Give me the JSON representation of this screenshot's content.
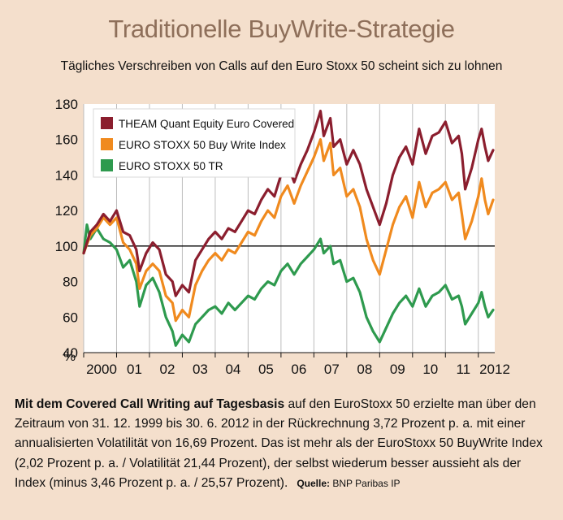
{
  "title": "Traditionelle BuyWrite-Strategie",
  "subtitle": "Tägliches Verschreiben von Calls auf den Euro Stoxx 50 scheint sich zu lohnen",
  "caption": {
    "bold": "Mit dem Covered Call Writing auf Tagesbasis",
    "text": " auf den EuroStoxx 50 erzielte man über den Zeitraum von 31. 12. 1999 bis 30. 6. 2012 in der Rückrechnung 3,72 Prozent p. a. mit einer annualisierten Volatilität von 16,69 Prozent. Das ist mehr als der EuroStoxx 50 BuyWrite Index (2,02 Prozent p. a. / Volatilität 21,44 Prozent), der selbst wiederum besser aussieht als der Index (minus 3,46 Prozent p. a. / 25,57 Prozent).",
    "source_label": "Quelle:",
    "source": "BNP Paribas IP"
  },
  "chart_data": {
    "type": "line",
    "ylabel": "%",
    "ylim": [
      40,
      180
    ],
    "yticks": [
      40,
      60,
      80,
      100,
      120,
      140,
      160,
      180
    ],
    "xlim": [
      2000.0,
      2012.5
    ],
    "xticks": [
      {
        "label": "2000",
        "x": 2000.0
      },
      {
        "label": "01",
        "x": 2001.0
      },
      {
        "label": "02",
        "x": 2002.0
      },
      {
        "label": "03",
        "x": 2003.0
      },
      {
        "label": "04",
        "x": 2004.0
      },
      {
        "label": "05",
        "x": 2005.0
      },
      {
        "label": "06",
        "x": 2006.0
      },
      {
        "label": "07",
        "x": 2007.0
      },
      {
        "label": "08",
        "x": 2008.0
      },
      {
        "label": "09",
        "x": 2009.0
      },
      {
        "label": "10",
        "x": 2010.0
      },
      {
        "label": "11",
        "x": 2011.0
      },
      {
        "label": "2012",
        "x": 2012.0
      }
    ],
    "reference_line": 100,
    "grid": "vertical lines at year ticks",
    "legend_position": "top-left",
    "series": [
      {
        "name": "THEAM Quant Equity Euro Covered",
        "color": "#8b1e2e",
        "points": [
          [
            2000.0,
            96
          ],
          [
            2000.2,
            108
          ],
          [
            2000.4,
            112
          ],
          [
            2000.6,
            118
          ],
          [
            2000.8,
            114
          ],
          [
            2001.0,
            120
          ],
          [
            2001.2,
            108
          ],
          [
            2001.4,
            106
          ],
          [
            2001.6,
            98
          ],
          [
            2001.7,
            86
          ],
          [
            2001.9,
            96
          ],
          [
            2002.1,
            102
          ],
          [
            2002.3,
            98
          ],
          [
            2002.5,
            84
          ],
          [
            2002.7,
            80
          ],
          [
            2002.8,
            72
          ],
          [
            2003.0,
            78
          ],
          [
            2003.2,
            74
          ],
          [
            2003.4,
            92
          ],
          [
            2003.6,
            98
          ],
          [
            2003.8,
            104
          ],
          [
            2004.0,
            108
          ],
          [
            2004.2,
            104
          ],
          [
            2004.4,
            110
          ],
          [
            2004.6,
            108
          ],
          [
            2004.8,
            114
          ],
          [
            2005.0,
            120
          ],
          [
            2005.2,
            118
          ],
          [
            2005.4,
            126
          ],
          [
            2005.6,
            132
          ],
          [
            2005.8,
            128
          ],
          [
            2006.0,
            140
          ],
          [
            2006.2,
            146
          ],
          [
            2006.4,
            136
          ],
          [
            2006.6,
            146
          ],
          [
            2006.8,
            154
          ],
          [
            2007.0,
            164
          ],
          [
            2007.2,
            176
          ],
          [
            2007.3,
            162
          ],
          [
            2007.5,
            172
          ],
          [
            2007.6,
            156
          ],
          [
            2007.8,
            160
          ],
          [
            2008.0,
            146
          ],
          [
            2008.2,
            154
          ],
          [
            2008.4,
            146
          ],
          [
            2008.6,
            132
          ],
          [
            2008.8,
            122
          ],
          [
            2009.0,
            112
          ],
          [
            2009.2,
            124
          ],
          [
            2009.4,
            140
          ],
          [
            2009.6,
            150
          ],
          [
            2009.8,
            156
          ],
          [
            2010.0,
            146
          ],
          [
            2010.2,
            166
          ],
          [
            2010.4,
            152
          ],
          [
            2010.6,
            162
          ],
          [
            2010.8,
            164
          ],
          [
            2011.0,
            170
          ],
          [
            2011.2,
            158
          ],
          [
            2011.4,
            162
          ],
          [
            2011.5,
            152
          ],
          [
            2011.6,
            132
          ],
          [
            2011.8,
            144
          ],
          [
            2012.0,
            160
          ],
          [
            2012.1,
            166
          ],
          [
            2012.2,
            156
          ],
          [
            2012.3,
            148
          ],
          [
            2012.45,
            154
          ]
        ]
      },
      {
        "name": "EURO STOXX 50 Buy Write Index",
        "color": "#f08a1e",
        "points": [
          [
            2000.0,
            96
          ],
          [
            2000.2,
            106
          ],
          [
            2000.4,
            110
          ],
          [
            2000.6,
            116
          ],
          [
            2000.8,
            112
          ],
          [
            2001.0,
            116
          ],
          [
            2001.2,
            102
          ],
          [
            2001.4,
            98
          ],
          [
            2001.6,
            90
          ],
          [
            2001.7,
            76
          ],
          [
            2001.9,
            86
          ],
          [
            2002.1,
            90
          ],
          [
            2002.3,
            86
          ],
          [
            2002.5,
            72
          ],
          [
            2002.7,
            68
          ],
          [
            2002.8,
            58
          ],
          [
            2003.0,
            64
          ],
          [
            2003.2,
            60
          ],
          [
            2003.4,
            78
          ],
          [
            2003.6,
            86
          ],
          [
            2003.8,
            92
          ],
          [
            2004.0,
            96
          ],
          [
            2004.2,
            92
          ],
          [
            2004.4,
            98
          ],
          [
            2004.6,
            96
          ],
          [
            2004.8,
            102
          ],
          [
            2005.0,
            108
          ],
          [
            2005.2,
            106
          ],
          [
            2005.4,
            114
          ],
          [
            2005.6,
            120
          ],
          [
            2005.8,
            116
          ],
          [
            2006.0,
            128
          ],
          [
            2006.2,
            134
          ],
          [
            2006.4,
            124
          ],
          [
            2006.6,
            134
          ],
          [
            2006.8,
            142
          ],
          [
            2007.0,
            150
          ],
          [
            2007.2,
            160
          ],
          [
            2007.3,
            148
          ],
          [
            2007.5,
            158
          ],
          [
            2007.6,
            140
          ],
          [
            2007.8,
            144
          ],
          [
            2008.0,
            128
          ],
          [
            2008.2,
            132
          ],
          [
            2008.4,
            122
          ],
          [
            2008.6,
            104
          ],
          [
            2008.8,
            92
          ],
          [
            2009.0,
            84
          ],
          [
            2009.2,
            98
          ],
          [
            2009.4,
            112
          ],
          [
            2009.6,
            122
          ],
          [
            2009.8,
            128
          ],
          [
            2010.0,
            116
          ],
          [
            2010.2,
            136
          ],
          [
            2010.4,
            122
          ],
          [
            2010.6,
            130
          ],
          [
            2010.8,
            132
          ],
          [
            2011.0,
            136
          ],
          [
            2011.2,
            126
          ],
          [
            2011.4,
            130
          ],
          [
            2011.5,
            118
          ],
          [
            2011.6,
            104
          ],
          [
            2011.8,
            114
          ],
          [
            2012.0,
            128
          ],
          [
            2012.1,
            138
          ],
          [
            2012.2,
            126
          ],
          [
            2012.3,
            118
          ],
          [
            2012.45,
            126
          ]
        ]
      },
      {
        "name": "EURO STOXX 50 TR",
        "color": "#2e9a4e",
        "points": [
          [
            2000.0,
            96
          ],
          [
            2000.1,
            112
          ],
          [
            2000.2,
            104
          ],
          [
            2000.4,
            110
          ],
          [
            2000.6,
            104
          ],
          [
            2000.8,
            102
          ],
          [
            2001.0,
            98
          ],
          [
            2001.2,
            88
          ],
          [
            2001.4,
            92
          ],
          [
            2001.6,
            80
          ],
          [
            2001.7,
            66
          ],
          [
            2001.9,
            78
          ],
          [
            2002.1,
            82
          ],
          [
            2002.3,
            74
          ],
          [
            2002.5,
            60
          ],
          [
            2002.7,
            52
          ],
          [
            2002.8,
            44
          ],
          [
            2003.0,
            50
          ],
          [
            2003.2,
            46
          ],
          [
            2003.4,
            56
          ],
          [
            2003.6,
            60
          ],
          [
            2003.8,
            64
          ],
          [
            2004.0,
            66
          ],
          [
            2004.2,
            62
          ],
          [
            2004.4,
            68
          ],
          [
            2004.6,
            64
          ],
          [
            2004.8,
            68
          ],
          [
            2005.0,
            72
          ],
          [
            2005.2,
            70
          ],
          [
            2005.4,
            76
          ],
          [
            2005.6,
            80
          ],
          [
            2005.8,
            78
          ],
          [
            2006.0,
            86
          ],
          [
            2006.2,
            90
          ],
          [
            2006.4,
            84
          ],
          [
            2006.6,
            90
          ],
          [
            2006.8,
            94
          ],
          [
            2007.0,
            98
          ],
          [
            2007.2,
            104
          ],
          [
            2007.3,
            96
          ],
          [
            2007.5,
            100
          ],
          [
            2007.6,
            90
          ],
          [
            2007.8,
            92
          ],
          [
            2008.0,
            80
          ],
          [
            2008.2,
            82
          ],
          [
            2008.4,
            74
          ],
          [
            2008.6,
            60
          ],
          [
            2008.8,
            52
          ],
          [
            2009.0,
            46
          ],
          [
            2009.2,
            54
          ],
          [
            2009.4,
            62
          ],
          [
            2009.6,
            68
          ],
          [
            2009.8,
            72
          ],
          [
            2010.0,
            66
          ],
          [
            2010.2,
            76
          ],
          [
            2010.4,
            66
          ],
          [
            2010.6,
            72
          ],
          [
            2010.8,
            74
          ],
          [
            2011.0,
            78
          ],
          [
            2011.2,
            70
          ],
          [
            2011.4,
            72
          ],
          [
            2011.5,
            66
          ],
          [
            2011.6,
            56
          ],
          [
            2011.8,
            62
          ],
          [
            2012.0,
            68
          ],
          [
            2012.1,
            74
          ],
          [
            2012.2,
            66
          ],
          [
            2012.3,
            60
          ],
          [
            2012.45,
            64
          ]
        ]
      }
    ]
  }
}
